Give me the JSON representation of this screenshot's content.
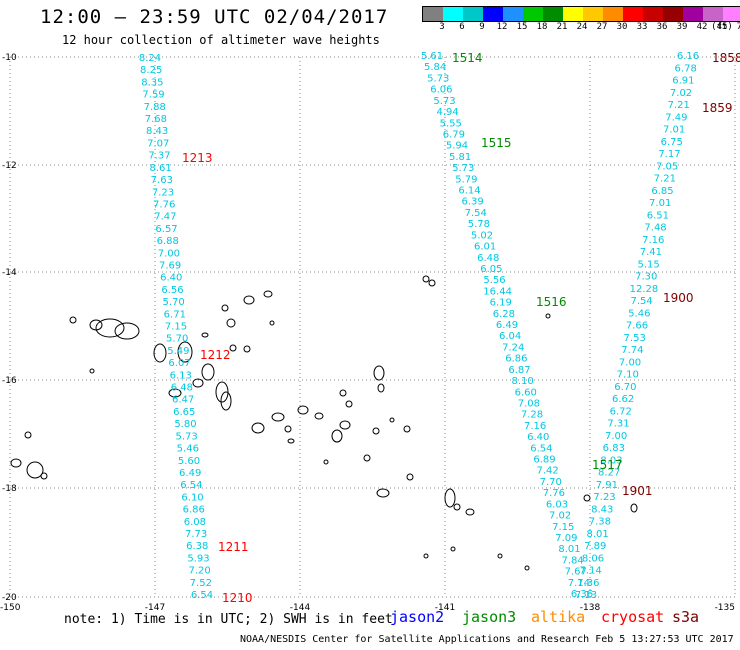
{
  "header": {
    "title": "12:00 — 23:59 UTC 02/04/2017",
    "subtitle": "12 hour collection of altimeter wave heights"
  },
  "colorbar": {
    "colors": [
      "#808080",
      "#00ffff",
      "#00c8c8",
      "#0000ff",
      "#1e90ff",
      "#00c800",
      "#008c00",
      "#ffff00",
      "#ffc800",
      "#ff8c00",
      "#ff0000",
      "#c80000",
      "#960000",
      "#a000a0",
      "#c864c8",
      "#ff80ff",
      "#000000"
    ],
    "labels": [
      "3",
      "6",
      "9",
      "12",
      "15",
      "18",
      "21",
      "24",
      "27",
      "30",
      "33",
      "36",
      "39",
      "42",
      "45",
      "70"
    ],
    "unit": "(ft)"
  },
  "axes": {
    "lat_labels": [
      "-10",
      "-12",
      "-14",
      "-16",
      "-18",
      "-20"
    ],
    "lon_labels": [
      "-150",
      "-147",
      "-144",
      "-141",
      "-138",
      "-135"
    ]
  },
  "passes": [
    {
      "color": "#00c8e0",
      "values": [
        "8.24",
        "8.25",
        "8.35",
        "7.59",
        "7.88",
        "7.68",
        "8.43",
        "7.07",
        "7.37",
        "8.61",
        "7.63",
        "7.23",
        "7.76",
        "7.47",
        "6.57",
        "6.88",
        "7.00",
        "7.69",
        "6.40",
        "6.56",
        "5.70",
        "6.71",
        "7.15",
        "5.70",
        "5.49",
        "6.07",
        "6.13",
        "6.48",
        "6.47",
        "6.65",
        "5.80",
        "5.73",
        "5.46",
        "5.60",
        "6.49",
        "6.54",
        "6.10",
        "6.86",
        "6.08",
        "7.73",
        "6.38",
        "5.93",
        "7.20",
        "7.52",
        "6.54"
      ]
    },
    {
      "color": "#00c8e0",
      "values": [
        "5.61",
        "5.84",
        "5.73",
        "6.06",
        "5.73",
        "4.94",
        "5.55",
        "6.79",
        "5.94",
        "5.81",
        "5.73",
        "5.79",
        "6.14",
        "6.39",
        "7.54",
        "5.78",
        "5.02",
        "6.01",
        "6.48",
        "6.05",
        "5.56",
        "16.44",
        "6.19",
        "6.28",
        "6.49",
        "6.04",
        "7.24",
        "6.86",
        "6.87",
        "8.10",
        "6.60",
        "7.08",
        "7.28",
        "7.16",
        "6.40",
        "6.54",
        "6.89",
        "7.42",
        "7.70",
        "7.76",
        "6.03",
        "7.02",
        "7.15",
        "7.09",
        "8.01",
        "7.84",
        "7.67",
        "7.14",
        "6.36"
      ]
    },
    {
      "color": "#00c8e0",
      "values": [
        "6.16",
        "6.78",
        "6.91",
        "7.02",
        "7.21",
        "7.49",
        "7.01",
        "6.75",
        "7.17",
        "7.05",
        "7.21",
        "6.85",
        "7.01",
        "6.51",
        "7.48",
        "7.16",
        "7.41",
        "5.15",
        "7.30",
        "12.28",
        "7.54",
        "5.46",
        "7.66",
        "7.53",
        "7.74",
        "7.00",
        "7.10",
        "6.70",
        "6.62",
        "6.72",
        "7.31",
        "7.00",
        "6.83",
        "8.03",
        "8.27",
        "7.91",
        "7.23",
        "8.43",
        "7.38",
        "8.01",
        "7.89",
        "8.06",
        "7.14",
        "7.36",
        "7.13"
      ]
    }
  ],
  "pass_labels": [
    {
      "text": "1514",
      "color": "#008c00"
    },
    {
      "text": "1515",
      "color": "#008c00"
    },
    {
      "text": "1516",
      "color": "#008c00"
    },
    {
      "text": "1517",
      "color": "#008c00"
    },
    {
      "text": "1213",
      "color": "#ff0000"
    },
    {
      "text": "1212",
      "color": "#ff0000"
    },
    {
      "text": "1211",
      "color": "#ff0000"
    },
    {
      "text": "1210",
      "color": "#ff0000"
    },
    {
      "text": "1858",
      "color": "#800000"
    },
    {
      "text": "1859",
      "color": "#800000"
    },
    {
      "text": "1900",
      "color": "#800000"
    },
    {
      "text": "1901",
      "color": "#800000"
    }
  ],
  "footer": {
    "note": "note: 1) Time is in UTC; 2) SWH is in feet",
    "legend": [
      {
        "text": "jason2",
        "color": "#0000ff"
      },
      {
        "text": "jason3",
        "color": "#008c00"
      },
      {
        "text": "altika",
        "color": "#ff8c00"
      },
      {
        "text": "cryosat",
        "color": "#ff0000"
      },
      {
        "text": "s3a",
        "color": "#800000"
      }
    ],
    "credit": "NOAA/NESDIS Center for Satellite Applications and Research   Feb  5 13:27:53 UTC 2017"
  }
}
